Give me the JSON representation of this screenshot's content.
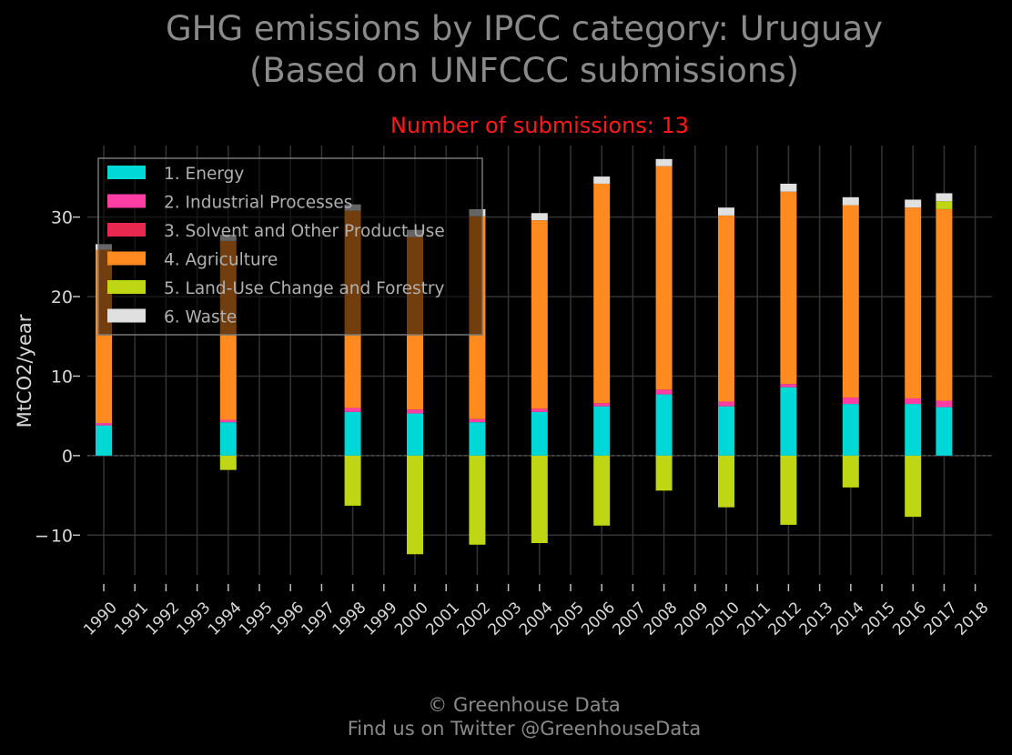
{
  "header": {
    "title_line1": "GHG emissions by IPCC category: Uruguay",
    "title_line2": "(Based on UNFCCC submissions)",
    "subtitle": "Number of submissions: 13"
  },
  "footer": {
    "line1": "© Greenhouse Data",
    "line2": "Find us on Twitter @GreenhouseData"
  },
  "colors": {
    "background": "#000000",
    "grid": "#333333",
    "title": "#8a8a8a",
    "subtitle": "#ff1a1a",
    "energy": "#00d8d8",
    "industrial": "#ff3ea5",
    "solvent": "#e8294f",
    "agriculture": "#ff8a1f",
    "lulucf": "#bfd614",
    "waste": "#e0e0e0"
  },
  "chart_data": {
    "type": "bar",
    "stacked": true,
    "title": "GHG emissions by IPCC category: Uruguay (Based on UNFCCC submissions)",
    "subtitle": "Number of submissions: 13",
    "xlabel": "",
    "ylabel": "MtCO2/year",
    "ylim": [
      -15,
      39
    ],
    "yticks": [
      -10,
      0,
      10,
      20,
      30
    ],
    "ytick_labels": [
      "− 10",
      "0",
      "10",
      "20",
      "30"
    ],
    "grid": true,
    "legend_position": "top-left",
    "categories": [
      "1990",
      "1991",
      "1992",
      "1993",
      "1994",
      "1995",
      "1996",
      "1997",
      "1998",
      "1999",
      "2000",
      "2001",
      "2002",
      "2003",
      "2004",
      "2005",
      "2006",
      "2007",
      "2008",
      "2009",
      "2010",
      "2011",
      "2012",
      "2013",
      "2014",
      "2015",
      "2016",
      "2017",
      "2018"
    ],
    "series": [
      {
        "name": "1. Energy",
        "color": "#00d8d8",
        "values": [
          3.8,
          null,
          null,
          null,
          4.2,
          null,
          null,
          null,
          5.5,
          null,
          5.3,
          null,
          4.2,
          null,
          5.5,
          null,
          6.2,
          null,
          7.7,
          null,
          6.2,
          null,
          8.6,
          null,
          6.5,
          null,
          6.5,
          6.1,
          null
        ]
      },
      {
        "name": "2. Industrial Processes",
        "color": "#ff3ea5",
        "values": [
          0.3,
          null,
          null,
          null,
          0.3,
          null,
          null,
          null,
          0.5,
          null,
          0.5,
          null,
          0.4,
          null,
          0.4,
          null,
          0.4,
          null,
          0.6,
          null,
          0.6,
          null,
          0.4,
          null,
          0.8,
          null,
          0.7,
          0.8,
          null
        ]
      },
      {
        "name": "3. Solvent and Other Product Use",
        "color": "#e8294f",
        "values": [
          0,
          null,
          null,
          null,
          0,
          null,
          null,
          null,
          0,
          null,
          0,
          null,
          0,
          null,
          0,
          null,
          0,
          null,
          0,
          null,
          0,
          null,
          0,
          null,
          0,
          null,
          0,
          0,
          null
        ]
      },
      {
        "name": "4. Agriculture",
        "color": "#ff8a1f",
        "values": [
          21.8,
          null,
          null,
          null,
          22.5,
          null,
          null,
          null,
          24.8,
          null,
          21.7,
          null,
          25.5,
          null,
          23.7,
          null,
          27.6,
          null,
          28.1,
          null,
          23.4,
          null,
          24.2,
          null,
          24.2,
          null,
          24.0,
          24.1,
          null
        ]
      },
      {
        "name": "5. Land-Use Change and Forestry",
        "color": "#bfd614",
        "values": [
          0,
          null,
          null,
          null,
          -1.8,
          null,
          null,
          null,
          -6.3,
          null,
          -12.4,
          null,
          -11.2,
          null,
          -11.0,
          null,
          -8.8,
          null,
          -4.4,
          null,
          -6.5,
          null,
          -8.7,
          null,
          -4.0,
          null,
          -7.7,
          1.0,
          null
        ]
      },
      {
        "name": "6. Waste",
        "color": "#e0e0e0",
        "values": [
          0.7,
          null,
          null,
          null,
          0.8,
          null,
          null,
          null,
          0.8,
          null,
          0.9,
          null,
          0.9,
          null,
          0.9,
          null,
          0.9,
          null,
          0.9,
          null,
          1.0,
          null,
          1.0,
          null,
          1.0,
          null,
          1.0,
          1.0,
          null
        ]
      }
    ]
  }
}
